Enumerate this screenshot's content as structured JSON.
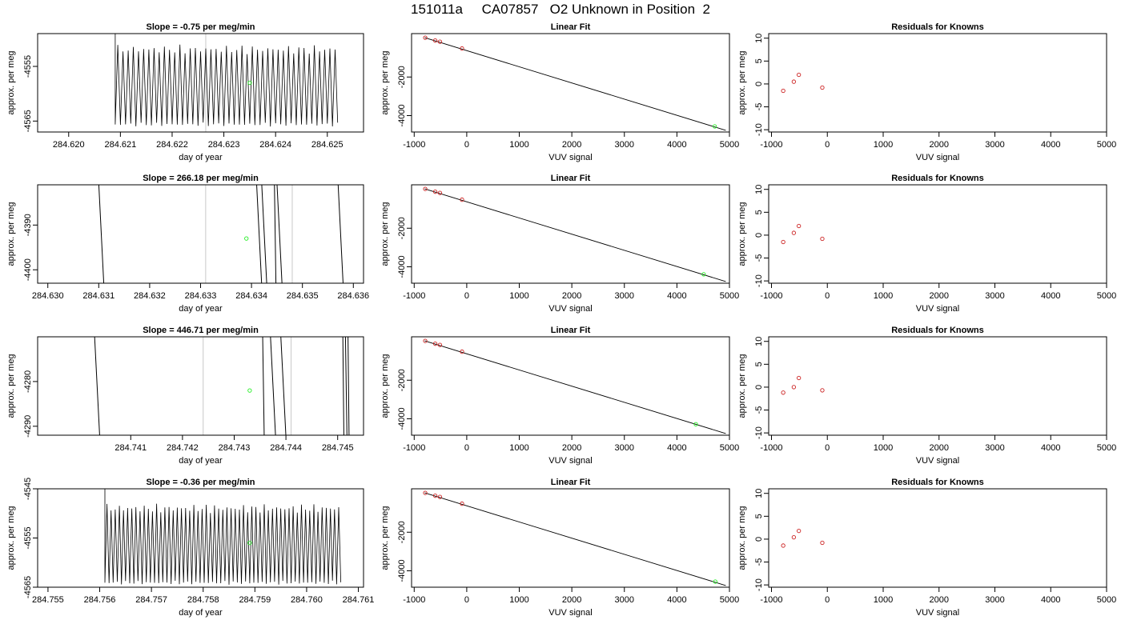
{
  "title": "151011a     CA07857   O2 Unknown in Position  2",
  "colors": {
    "trace": "#000000",
    "guide": "#c8c8c8",
    "unknown": "#22ee22",
    "known": "#cc2222",
    "fit": "#000000"
  },
  "chart_data": [
    {
      "type": "line",
      "title": "Slope =  -0.75  per meg/min",
      "xlabel": "day of year",
      "ylabel": "approx. per meg",
      "xlim": [
        284.6194,
        284.6257
      ],
      "ylim": [
        -4567,
        -4549
      ],
      "xticks": [
        284.62,
        284.621,
        284.622,
        284.623,
        284.624,
        284.625
      ],
      "xtick_labels": [
        "284.620",
        "284.621",
        "284.622",
        "284.623",
        "284.624",
        "284.625"
      ],
      "yticks": [
        -4555,
        -4565
      ],
      "ytick_labels": [
        "-4555",
        "-4565"
      ],
      "trace": {
        "start": 284.6209,
        "end": 284.6252,
        "period": 0.0001,
        "low": -4566,
        "high": -4551
      },
      "guides": [
        284.62265
      ],
      "unknown_point": {
        "x": 284.6235,
        "y": -4558
      }
    },
    {
      "type": "scatter",
      "title": "Linear Fit",
      "xlabel": "VUV signal",
      "ylabel": "approx. per meg",
      "xlim": [
        -1050,
        5000
      ],
      "ylim": [
        -4850,
        250
      ],
      "xticks": [
        -1000,
        0,
        1000,
        2000,
        3000,
        4000,
        5000
      ],
      "xtick_labels": [
        "-1000",
        "0",
        "1000",
        "2000",
        "3000",
        "4000",
        "5000"
      ],
      "yticks": [
        -2000,
        -4000
      ],
      "ytick_labels": [
        "-2000",
        "-4000"
      ],
      "fit_line": {
        "x": [
          -800,
          4930
        ],
        "y": [
          40,
          -4765
        ]
      },
      "known_points": [
        {
          "x": -790,
          "y": 38
        },
        {
          "x": -600,
          "y": -110
        },
        {
          "x": -510,
          "y": -170
        },
        {
          "x": -90,
          "y": -520
        }
      ],
      "unknown_point": {
        "x": 4720,
        "y": -4560
      }
    },
    {
      "type": "scatter",
      "title": "Residuals for Knowns",
      "xlabel": "VUV signal",
      "ylabel": "approx. per meg",
      "xlim": [
        -1050,
        5000
      ],
      "ylim": [
        -10.5,
        11
      ],
      "xticks": [
        -1000,
        0,
        1000,
        2000,
        3000,
        4000,
        5000
      ],
      "xtick_labels": [
        "-1000",
        "0",
        "1000",
        "2000",
        "3000",
        "4000",
        "5000"
      ],
      "yticks": [
        10,
        5,
        0,
        -5,
        -10
      ],
      "ytick_labels": [
        "10",
        "5",
        "0",
        "-5",
        "-10"
      ],
      "known_points": [
        {
          "x": -790,
          "y": -1.5
        },
        {
          "x": -600,
          "y": 0.5
        },
        {
          "x": -510,
          "y": 2
        },
        {
          "x": -90,
          "y": -0.8
        }
      ]
    },
    {
      "type": "line",
      "title": "Slope =  266.18  per meg/min",
      "xlabel": "day of year",
      "ylabel": "approx. per meg",
      "xlim": [
        284.6298,
        284.6362
      ],
      "ylim": [
        -4403,
        -4381
      ],
      "xticks": [
        284.63,
        284.631,
        284.632,
        284.633,
        284.634,
        284.635,
        284.636
      ],
      "xtick_labels": [
        "284.630",
        "284.631",
        "284.632",
        "284.633",
        "284.634",
        "284.635",
        "284.636"
      ],
      "yticks": [
        -4390,
        -4400
      ],
      "ytick_labels": [
        "-4390",
        "-4400"
      ],
      "segments": [
        [
          284.631,
          284.6311
        ],
        [
          284.6341,
          284.6342
        ],
        [
          284.6342,
          284.6343
        ],
        [
          284.63445,
          284.63448
        ],
        [
          284.6345,
          284.6346
        ],
        [
          284.6357,
          284.6358
        ]
      ],
      "guides": [
        284.6331,
        284.6348
      ],
      "unknown_point": {
        "x": 284.6339,
        "y": -4393
      }
    },
    {
      "type": "scatter",
      "title": "Linear Fit",
      "xlabel": "VUV signal",
      "ylabel": "approx. per meg",
      "xlim": [
        -1050,
        5000
      ],
      "ylim": [
        -4850,
        250
      ],
      "xticks": [
        -1000,
        0,
        1000,
        2000,
        3000,
        4000,
        5000
      ],
      "xtick_labels": [
        "-1000",
        "0",
        "1000",
        "2000",
        "3000",
        "4000",
        "5000"
      ],
      "yticks": [
        -2000,
        -4000
      ],
      "ytick_labels": [
        "-2000",
        "-4000"
      ],
      "fit_line": {
        "x": [
          -800,
          4930
        ],
        "y": [
          40,
          -4765
        ]
      },
      "known_points": [
        {
          "x": -790,
          "y": 38
        },
        {
          "x": -600,
          "y": -110
        },
        {
          "x": -510,
          "y": -170
        },
        {
          "x": -90,
          "y": -520
        }
      ],
      "unknown_point": {
        "x": 4510,
        "y": -4390
      }
    },
    {
      "type": "scatter",
      "title": "Residuals for Knowns",
      "xlabel": "VUV signal",
      "ylabel": "approx. per meg",
      "xlim": [
        -1050,
        5000
      ],
      "ylim": [
        -10.5,
        11
      ],
      "xticks": [
        -1000,
        0,
        1000,
        2000,
        3000,
        4000,
        5000
      ],
      "xtick_labels": [
        "-1000",
        "0",
        "1000",
        "2000",
        "3000",
        "4000",
        "5000"
      ],
      "yticks": [
        10,
        5,
        0,
        -5,
        -10
      ],
      "ytick_labels": [
        "10",
        "5",
        "0",
        "-5",
        "-10"
      ],
      "known_points": [
        {
          "x": -790,
          "y": -1.5
        },
        {
          "x": -600,
          "y": 0.5
        },
        {
          "x": -510,
          "y": 2
        },
        {
          "x": -90,
          "y": -0.8
        }
      ]
    },
    {
      "type": "line",
      "title": "Slope =  446.71  per meg/min",
      "xlabel": "day of year",
      "ylabel": "approx. per meg",
      "xlim": [
        284.7392,
        284.7455
      ],
      "ylim": [
        -4292,
        -4270
      ],
      "xticks": [
        284.741,
        284.742,
        284.743,
        284.744,
        284.745
      ],
      "xtick_labels": [
        "284.741",
        "284.742",
        "284.743",
        "284.744",
        "284.745"
      ],
      "yticks": [
        -4280,
        -4290
      ],
      "ytick_labels": [
        "-4280",
        "-4290"
      ],
      "segments": [
        [
          284.7403,
          284.7404
        ],
        [
          284.74355,
          284.74358
        ],
        [
          284.7437,
          284.7438
        ],
        [
          284.7439,
          284.744
        ],
        [
          284.7451,
          284.74512
        ],
        [
          284.74515,
          284.74518
        ],
        [
          284.7452,
          284.74522
        ]
      ],
      "guides": [
        284.7424,
        284.7441
      ],
      "unknown_point": {
        "x": 284.7433,
        "y": -4282
      }
    },
    {
      "type": "scatter",
      "title": "Linear Fit",
      "xlabel": "VUV signal",
      "ylabel": "approx. per meg",
      "xlim": [
        -1050,
        5000
      ],
      "ylim": [
        -4850,
        250
      ],
      "xticks": [
        -1000,
        0,
        1000,
        2000,
        3000,
        4000,
        5000
      ],
      "xtick_labels": [
        "-1000",
        "0",
        "1000",
        "2000",
        "3000",
        "4000",
        "5000"
      ],
      "yticks": [
        -2000,
        -4000
      ],
      "ytick_labels": [
        "-2000",
        "-4000"
      ],
      "fit_line": {
        "x": [
          -800,
          4930
        ],
        "y": [
          40,
          -4765
        ]
      },
      "known_points": [
        {
          "x": -790,
          "y": 38
        },
        {
          "x": -600,
          "y": -110
        },
        {
          "x": -510,
          "y": -170
        },
        {
          "x": -90,
          "y": -520
        }
      ],
      "unknown_point": {
        "x": 4360,
        "y": -4280
      }
    },
    {
      "type": "scatter",
      "title": "Residuals for Knowns",
      "xlabel": "VUV signal",
      "ylabel": "approx. per meg",
      "xlim": [
        -1050,
        5000
      ],
      "ylim": [
        -10.5,
        11
      ],
      "xticks": [
        -1000,
        0,
        1000,
        2000,
        3000,
        4000,
        5000
      ],
      "xtick_labels": [
        "-1000",
        "0",
        "1000",
        "2000",
        "3000",
        "4000",
        "5000"
      ],
      "yticks": [
        10,
        5,
        0,
        -5,
        -10
      ],
      "ytick_labels": [
        "10",
        "5",
        "0",
        "-5",
        "-10"
      ],
      "known_points": [
        {
          "x": -790,
          "y": -1.2
        },
        {
          "x": -600,
          "y": 0
        },
        {
          "x": -510,
          "y": 2
        },
        {
          "x": -90,
          "y": -0.7
        }
      ]
    },
    {
      "type": "line",
      "title": "Slope =  -0.36  per meg/min",
      "xlabel": "day of year",
      "ylabel": "approx. per meg",
      "xlim": [
        284.7548,
        284.7611
      ],
      "ylim": [
        -4565,
        -4545
      ],
      "xticks": [
        284.755,
        284.756,
        284.757,
        284.758,
        284.759,
        284.76,
        284.761
      ],
      "xtick_labels": [
        "284.755",
        "284.756",
        "284.757",
        "284.758",
        "284.759",
        "284.760",
        "284.761"
      ],
      "yticks": [
        -4545,
        -4555,
        -4565
      ],
      "ytick_labels": [
        "-4545",
        "-4555",
        "-4565"
      ],
      "trace": {
        "start": 284.7561,
        "end": 284.7607,
        "period": 8e-05,
        "low": -4564.5,
        "high": -4548
      },
      "guides": [],
      "unknown_point": {
        "x": 284.7589,
        "y": -4556
      }
    },
    {
      "type": "scatter",
      "title": "Linear Fit",
      "xlabel": "VUV signal",
      "ylabel": "approx. per meg",
      "xlim": [
        -1050,
        5000
      ],
      "ylim": [
        -4850,
        250
      ],
      "xticks": [
        -1000,
        0,
        1000,
        2000,
        3000,
        4000,
        5000
      ],
      "xtick_labels": [
        "-1000",
        "0",
        "1000",
        "2000",
        "3000",
        "4000",
        "5000"
      ],
      "yticks": [
        -2000,
        -4000
      ],
      "ytick_labels": [
        "-2000",
        "-4000"
      ],
      "fit_line": {
        "x": [
          -800,
          4930
        ],
        "y": [
          40,
          -4765
        ]
      },
      "known_points": [
        {
          "x": -790,
          "y": 38
        },
        {
          "x": -600,
          "y": -110
        },
        {
          "x": -510,
          "y": -170
        },
        {
          "x": -90,
          "y": -520
        }
      ],
      "unknown_point": {
        "x": 4730,
        "y": -4560
      }
    },
    {
      "type": "scatter",
      "title": "Residuals for Knowns",
      "xlabel": "VUV signal",
      "ylabel": "approx. per meg",
      "xlim": [
        -1050,
        5000
      ],
      "ylim": [
        -10.5,
        11
      ],
      "xticks": [
        -1000,
        0,
        1000,
        2000,
        3000,
        4000,
        5000
      ],
      "xtick_labels": [
        "-1000",
        "0",
        "1000",
        "2000",
        "3000",
        "4000",
        "5000"
      ],
      "yticks": [
        10,
        5,
        0,
        -5,
        -10
      ],
      "ytick_labels": [
        "10",
        "5",
        "0",
        "-5",
        "-10"
      ],
      "known_points": [
        {
          "x": -790,
          "y": -1.4
        },
        {
          "x": -600,
          "y": 0.4
        },
        {
          "x": -510,
          "y": 1.8
        },
        {
          "x": -90,
          "y": -0.8
        }
      ]
    }
  ]
}
